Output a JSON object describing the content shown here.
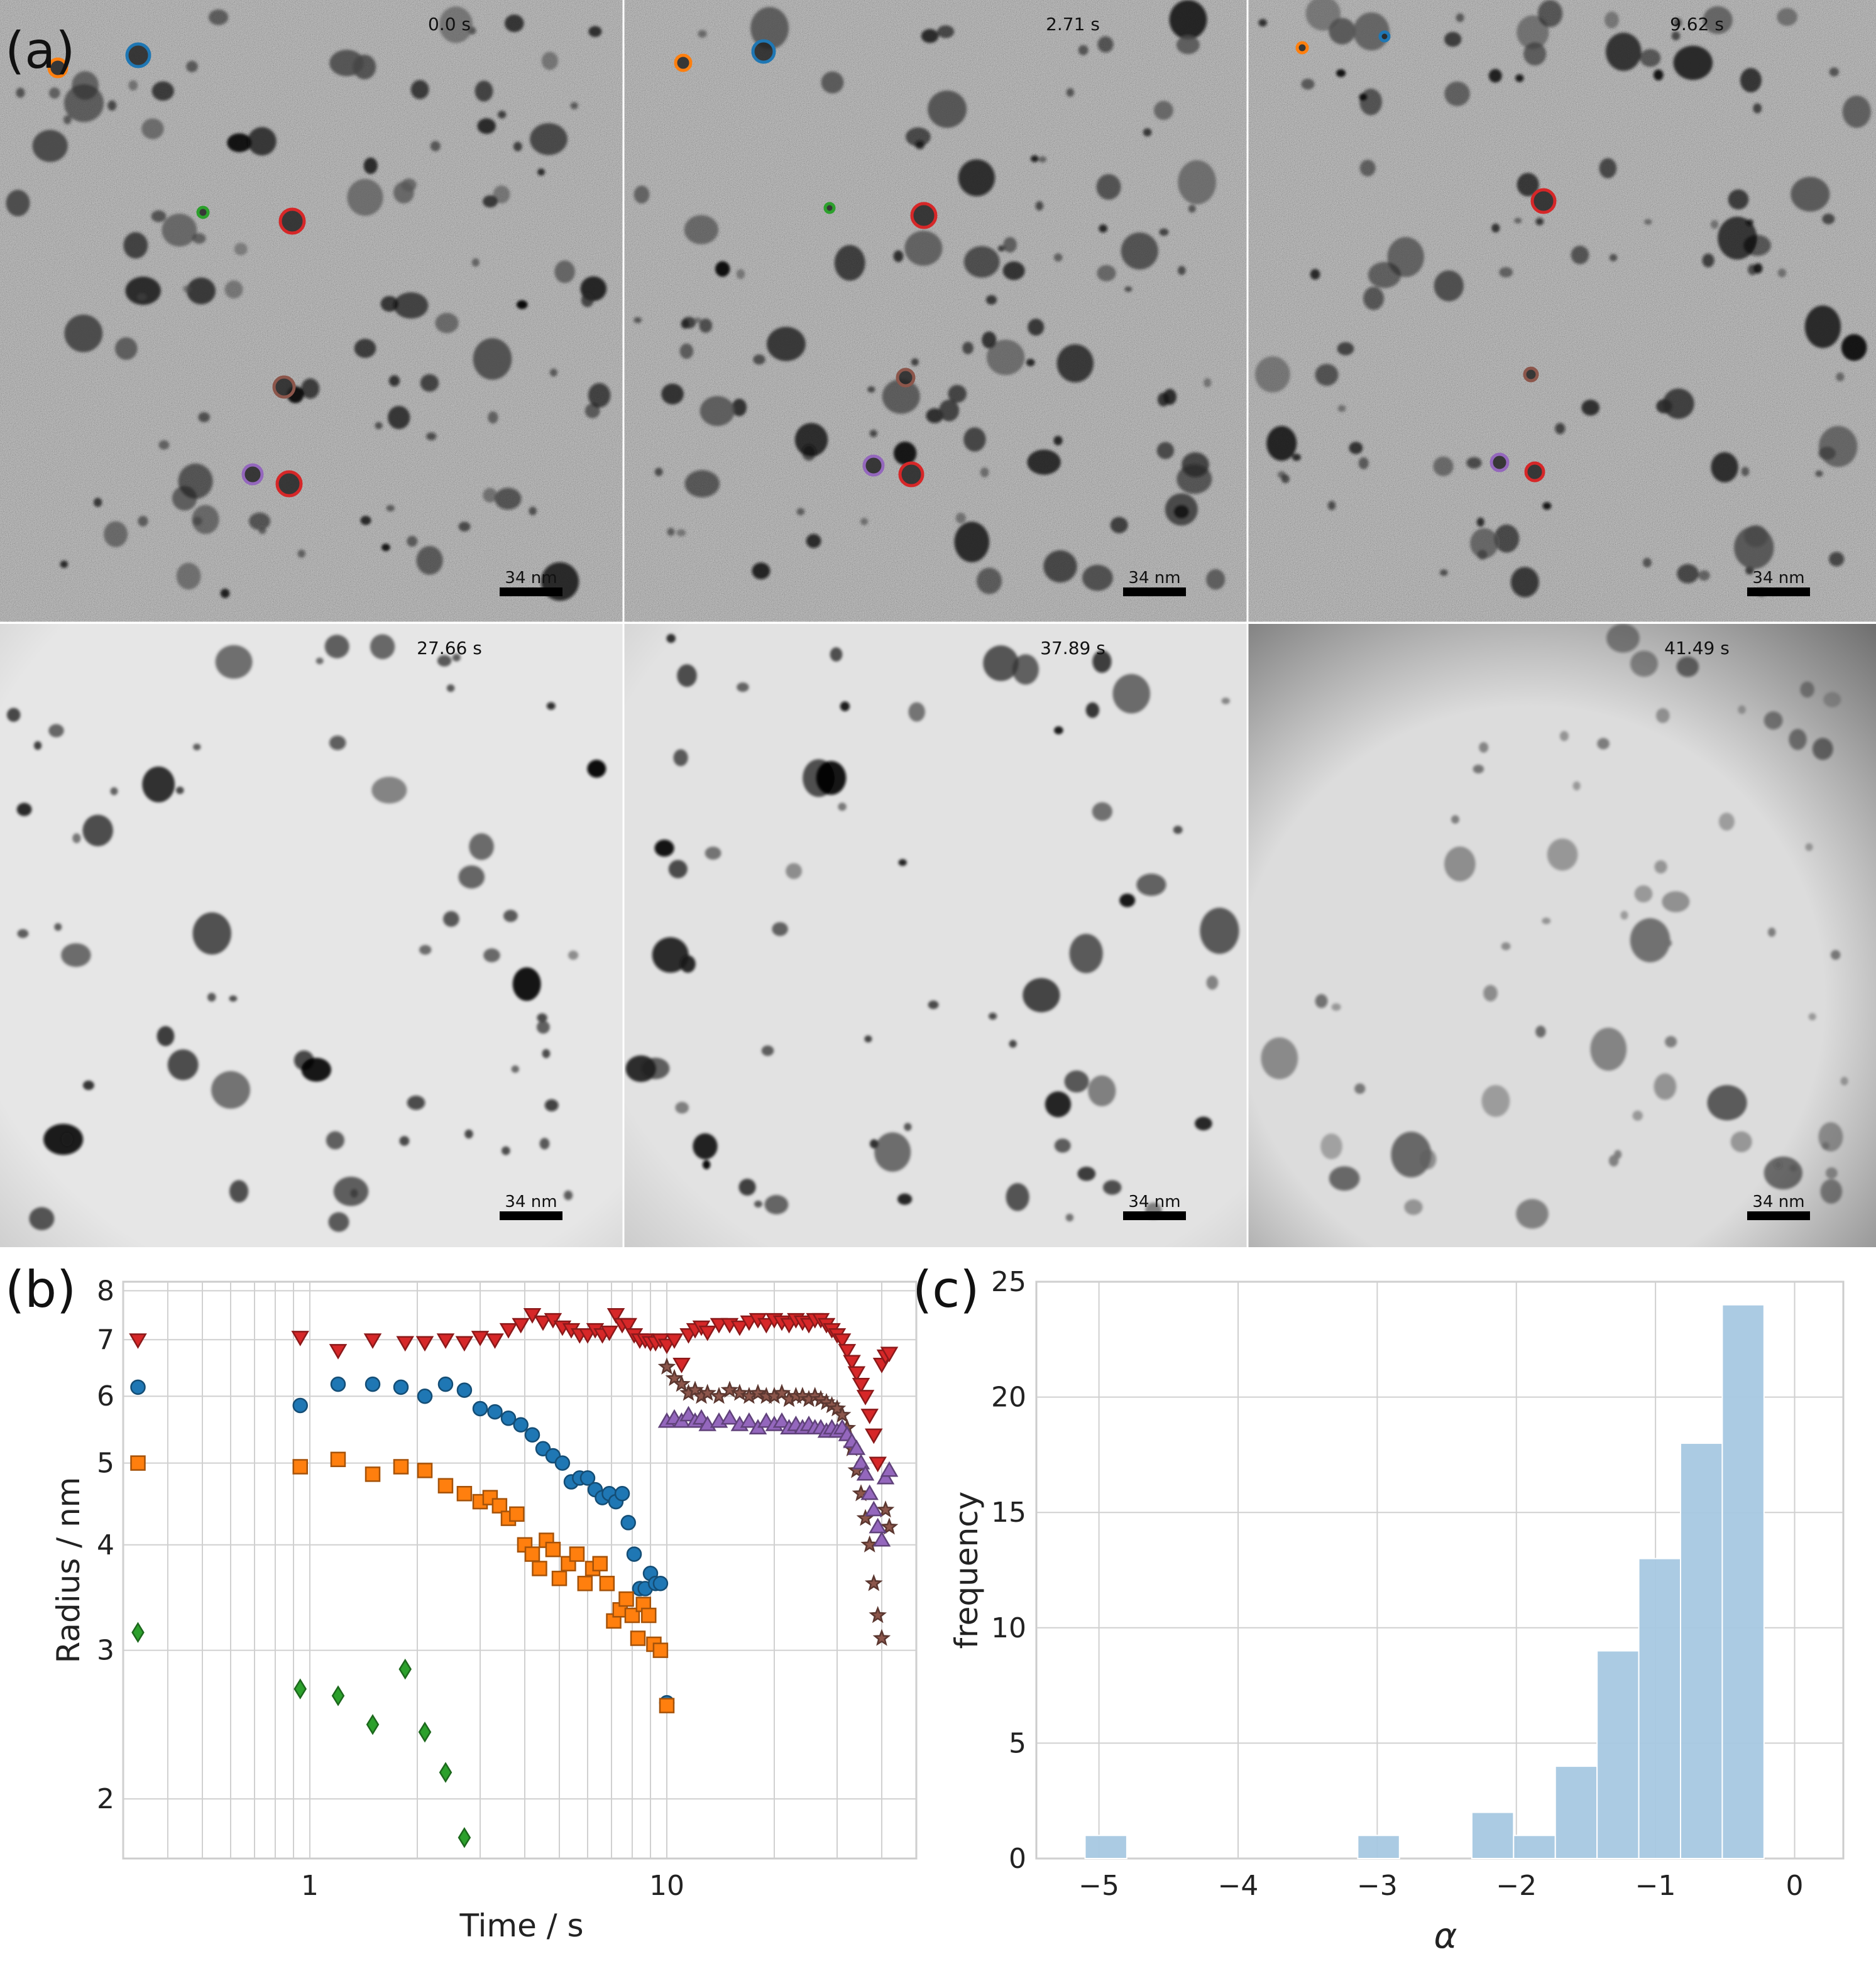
{
  "panel_labels": {
    "a": "(a)",
    "b": "(b)",
    "c": "(c)"
  },
  "micrographs": [
    {
      "timestamp": "0.0 s",
      "scale_bar": "34 nm",
      "background": "noisy"
    },
    {
      "timestamp": "2.71 s",
      "scale_bar": "34 nm",
      "background": "noisy"
    },
    {
      "timestamp": "9.62 s",
      "scale_bar": "34 nm",
      "background": "noisy"
    },
    {
      "timestamp": "27.66 s",
      "scale_bar": "34 nm",
      "background": "clean"
    },
    {
      "timestamp": "37.89 s",
      "scale_bar": "34 nm",
      "background": "clean"
    },
    {
      "timestamp": "41.49 s",
      "scale_bar": "34 nm",
      "background": "clean_vignette"
    }
  ],
  "colors": {
    "blue": "#1f77b4",
    "orange": "#ff7f0e",
    "green": "#2ca02c",
    "red": "#d62728",
    "purple": "#9467bd",
    "brown": "#8c564b",
    "hist_fill": "#a6c8e2",
    "grid": "#d0d0d0"
  },
  "chart_data": [
    {
      "panel": "b",
      "type": "scatter",
      "xlabel": "Time / s",
      "ylabel": "Radius / nm",
      "xscale": "log",
      "yscale": "log",
      "xlim": [
        0.3,
        50
      ],
      "ylim": [
        1.7,
        8.2
      ],
      "xticks": [
        1,
        10
      ],
      "xtick_labels": [
        "1",
        "10"
      ],
      "yticks": [
        2,
        3,
        4,
        5,
        6,
        7,
        8
      ],
      "ytick_labels": [
        "2",
        "3",
        "4",
        "5",
        "6",
        "7",
        "8"
      ],
      "grid": true,
      "series": [
        {
          "color": "red",
          "marker": "triangle-down",
          "x": [
            0.33,
            0.94,
            1.2,
            1.5,
            1.85,
            2.1,
            2.4,
            2.71,
            3.0,
            3.3,
            3.6,
            3.9,
            4.2,
            4.5,
            4.8,
            5.1,
            5.4,
            5.7,
            6.0,
            6.3,
            6.6,
            6.9,
            7.2,
            7.5,
            7.8,
            8.1,
            8.4,
            8.7,
            9.0,
            9.3,
            9.6,
            10.0,
            10.5,
            11,
            11.5,
            12,
            12.5,
            13,
            14,
            15,
            16,
            17,
            18,
            19,
            20,
            21,
            22,
            23,
            24,
            25,
            26,
            27,
            28,
            29,
            30,
            31,
            32,
            33,
            34,
            35,
            36,
            37,
            38,
            39,
            40,
            41,
            42
          ],
          "y": [
            7.0,
            7.05,
            6.8,
            7.0,
            6.95,
            6.95,
            7.0,
            6.95,
            7.05,
            7.0,
            7.2,
            7.3,
            7.5,
            7.35,
            7.4,
            7.25,
            7.2,
            7.1,
            7.1,
            7.2,
            7.1,
            7.15,
            7.5,
            7.3,
            7.3,
            7.1,
            7.0,
            7.0,
            6.95,
            6.95,
            7.0,
            6.9,
            7.0,
            6.55,
            7.1,
            7.2,
            7.25,
            7.15,
            7.3,
            7.3,
            7.25,
            7.35,
            7.4,
            7.3,
            7.4,
            7.35,
            7.3,
            7.4,
            7.35,
            7.3,
            7.4,
            7.4,
            7.3,
            7.2,
            7.1,
            7.0,
            6.8,
            6.6,
            6.4,
            6.2,
            6.0,
            5.7,
            5.4,
            5.0,
            6.55,
            6.7,
            6.75
          ]
        },
        {
          "color": "blue",
          "marker": "circle",
          "x": [
            0.33,
            0.94,
            1.2,
            1.5,
            1.8,
            2.1,
            2.4,
            2.71,
            3.0,
            3.3,
            3.6,
            3.9,
            4.2,
            4.5,
            4.8,
            5.1,
            5.4,
            5.7,
            6.0,
            6.3,
            6.6,
            6.9,
            7.2,
            7.5,
            7.8,
            8.1,
            8.4,
            8.7,
            9.0,
            9.3,
            9.6,
            10.0
          ],
          "y": [
            6.15,
            5.85,
            6.2,
            6.2,
            6.15,
            6.0,
            6.2,
            6.1,
            5.8,
            5.75,
            5.65,
            5.55,
            5.4,
            5.2,
            5.1,
            5.0,
            4.75,
            4.8,
            4.8,
            4.65,
            4.55,
            4.6,
            4.5,
            4.6,
            4.25,
            3.9,
            3.55,
            3.55,
            3.7,
            3.6,
            3.6,
            2.6
          ]
        },
        {
          "color": "orange",
          "marker": "square",
          "x": [
            0.33,
            0.94,
            1.2,
            1.5,
            1.8,
            2.1,
            2.4,
            2.71,
            3.0,
            3.2,
            3.4,
            3.6,
            3.8,
            4.0,
            4.2,
            4.4,
            4.6,
            4.8,
            5.0,
            5.3,
            5.6,
            5.9,
            6.2,
            6.5,
            6.8,
            7.1,
            7.4,
            7.7,
            8.0,
            8.3,
            8.6,
            8.9,
            9.2,
            9.6,
            10.0
          ],
          "y": [
            5.0,
            4.95,
            5.05,
            4.85,
            4.95,
            4.9,
            4.7,
            4.6,
            4.5,
            4.55,
            4.45,
            4.3,
            4.35,
            4.0,
            3.9,
            3.75,
            4.05,
            3.95,
            3.65,
            3.8,
            3.9,
            3.6,
            3.75,
            3.8,
            3.6,
            3.25,
            3.35,
            3.45,
            3.3,
            3.1,
            3.4,
            3.3,
            3.05,
            3.0,
            2.58
          ]
        },
        {
          "color": "green",
          "marker": "diamond",
          "x": [
            0.33,
            0.94,
            1.2,
            1.5,
            1.85,
            2.1,
            2.4,
            2.71
          ],
          "y": [
            3.15,
            2.7,
            2.65,
            2.45,
            2.85,
            2.4,
            2.15,
            1.8
          ]
        },
        {
          "color": "brown",
          "marker": "star",
          "x": [
            10.0,
            10.5,
            11,
            11.5,
            12,
            12.5,
            13,
            14,
            15,
            16,
            17,
            18,
            19,
            20,
            21,
            22,
            23,
            24,
            25,
            26,
            27,
            28,
            29,
            30,
            31,
            32,
            33,
            34,
            35,
            36,
            37,
            38,
            39,
            40,
            41,
            42
          ],
          "y": [
            6.5,
            6.3,
            6.2,
            6.05,
            6.1,
            6.0,
            6.05,
            6.0,
            6.1,
            6.05,
            6.0,
            6.05,
            6.0,
            6.0,
            6.05,
            5.95,
            6.0,
            6.0,
            5.95,
            6.0,
            5.95,
            5.9,
            5.85,
            5.8,
            5.7,
            5.5,
            5.2,
            4.9,
            4.6,
            4.3,
            4.0,
            3.6,
            3.3,
            3.1,
            4.4,
            4.2
          ]
        },
        {
          "color": "purple",
          "marker": "triangle-up",
          "x": [
            10.0,
            10.5,
            11,
            11.5,
            12,
            12.5,
            13,
            14,
            15,
            16,
            17,
            18,
            19,
            20,
            21,
            22,
            23,
            24,
            25,
            26,
            27,
            28,
            29,
            30,
            31,
            32,
            33,
            34,
            35,
            36,
            37,
            38,
            39,
            40,
            41,
            42
          ],
          "y": [
            5.6,
            5.65,
            5.6,
            5.7,
            5.6,
            5.65,
            5.55,
            5.6,
            5.65,
            5.55,
            5.6,
            5.5,
            5.6,
            5.55,
            5.6,
            5.5,
            5.55,
            5.5,
            5.55,
            5.5,
            5.5,
            5.45,
            5.5,
            5.45,
            5.5,
            5.4,
            5.3,
            5.2,
            5.0,
            4.85,
            4.6,
            4.4,
            4.2,
            4.05,
            4.8,
            4.9
          ]
        }
      ]
    },
    {
      "panel": "c",
      "type": "bar",
      "xlabel": "α",
      "ylabel": "frequency",
      "xlim": [
        -5.45,
        0.35
      ],
      "ylim": [
        0,
        25
      ],
      "xticks": [
        -5,
        -4,
        -3,
        -2,
        -1,
        0
      ],
      "xtick_labels": [
        "−5",
        "−4",
        "−3",
        "−2",
        "−1",
        "0"
      ],
      "yticks": [
        0,
        5,
        10,
        15,
        20,
        25
      ],
      "ytick_labels": [
        "0",
        "5",
        "10",
        "15",
        "20",
        "25"
      ],
      "grid": true,
      "bins": [
        {
          "x0": -5.1,
          "x1": -4.8,
          "count": 1
        },
        {
          "x0": -3.14,
          "x1": -2.84,
          "count": 1
        },
        {
          "x0": -2.32,
          "x1": -2.02,
          "count": 2
        },
        {
          "x0": -2.02,
          "x1": -1.72,
          "count": 1
        },
        {
          "x0": -1.72,
          "x1": -1.42,
          "count": 4
        },
        {
          "x0": -1.42,
          "x1": -1.12,
          "count": 9
        },
        {
          "x0": -1.12,
          "x1": -0.82,
          "count": 13
        },
        {
          "x0": -0.82,
          "x1": -0.52,
          "count": 18
        },
        {
          "x0": -0.52,
          "x1": -0.22,
          "count": 24
        }
      ]
    }
  ]
}
